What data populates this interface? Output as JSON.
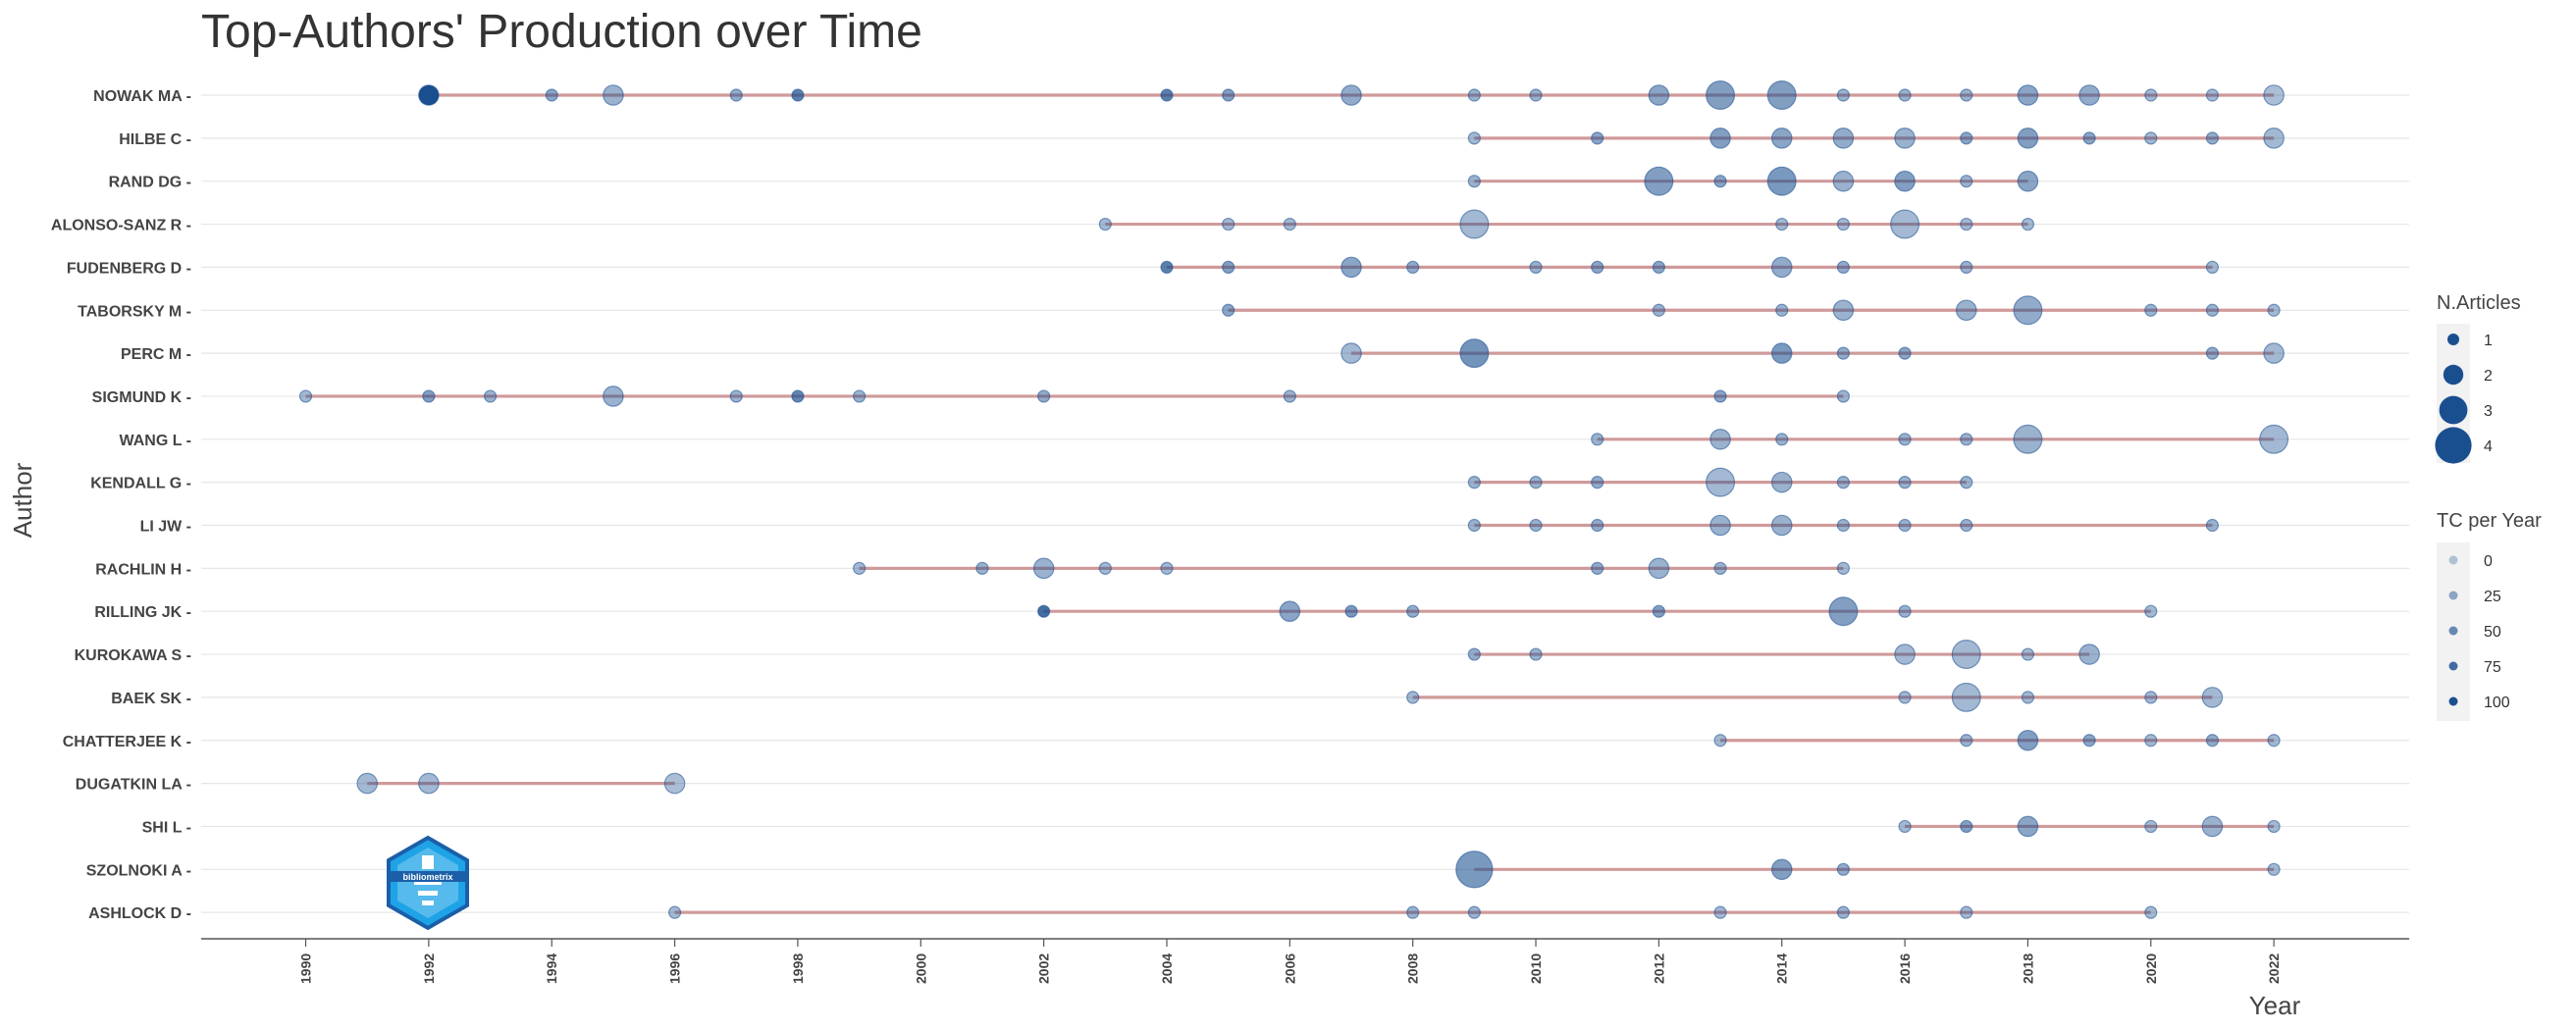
{
  "chart_data": {
    "type": "scatter",
    "title": "Top-Authors' Production over Time",
    "xlabel": "Year",
    "ylabel": "Author",
    "xlim": [
      1988.3,
      2024.2
    ],
    "x_ticks": [
      1990,
      1992,
      1994,
      1996,
      1998,
      2000,
      2002,
      2004,
      2006,
      2008,
      2010,
      2012,
      2014,
      2016,
      2018,
      2020,
      2022
    ],
    "grid": "horizontal",
    "colors": {
      "point": "#1a4f8f",
      "line": "#c98b8b",
      "grid": "#e6e6e6",
      "axis": "#555555"
    },
    "legend_articles": {
      "title": "N.Articles",
      "placement": "right",
      "values": [
        1,
        2,
        3,
        4
      ]
    },
    "legend_tc": {
      "title": "TC per Year",
      "placement": "right",
      "labels": [
        "0",
        "25",
        "50",
        "75",
        "100"
      ]
    },
    "authors": [
      {
        "name": "NOWAK MA",
        "points": [
          [
            1992,
            2,
            100
          ],
          [
            1994,
            1,
            30
          ],
          [
            1995,
            2,
            20
          ],
          [
            1997,
            1,
            25
          ],
          [
            1998,
            1,
            60
          ],
          [
            2004,
            1,
            60
          ],
          [
            2005,
            1,
            35
          ],
          [
            2007,
            2,
            25
          ],
          [
            2009,
            1,
            20
          ],
          [
            2010,
            1,
            20
          ],
          [
            2012,
            2,
            30
          ],
          [
            2013,
            3,
            35
          ],
          [
            2014,
            3,
            35
          ],
          [
            2015,
            1,
            20
          ],
          [
            2016,
            1,
            20
          ],
          [
            2017,
            1,
            20
          ],
          [
            2018,
            2,
            30
          ],
          [
            2019,
            2,
            25
          ],
          [
            2020,
            1,
            15
          ],
          [
            2021,
            1,
            15
          ],
          [
            2022,
            2,
            10
          ]
        ]
      },
      {
        "name": "HILBE C",
        "points": [
          [
            2009,
            1,
            15
          ],
          [
            2011,
            1,
            30
          ],
          [
            2013,
            2,
            35
          ],
          [
            2014,
            2,
            30
          ],
          [
            2015,
            2,
            25
          ],
          [
            2016,
            2,
            20
          ],
          [
            2017,
            1,
            30
          ],
          [
            2018,
            2,
            35
          ],
          [
            2019,
            1,
            30
          ],
          [
            2020,
            1,
            15
          ],
          [
            2021,
            1,
            25
          ],
          [
            2022,
            2,
            15
          ]
        ]
      },
      {
        "name": "RAND DG",
        "points": [
          [
            2009,
            1,
            20
          ],
          [
            2012,
            3,
            35
          ],
          [
            2013,
            1,
            30
          ],
          [
            2014,
            3,
            40
          ],
          [
            2015,
            2,
            20
          ],
          [
            2016,
            2,
            35
          ],
          [
            2017,
            1,
            20
          ],
          [
            2018,
            2,
            30
          ]
        ]
      },
      {
        "name": "ALONSO-SANZ R",
        "points": [
          [
            2003,
            1,
            15
          ],
          [
            2005,
            1,
            15
          ],
          [
            2006,
            1,
            15
          ],
          [
            2009,
            3,
            15
          ],
          [
            2014,
            1,
            15
          ],
          [
            2015,
            1,
            15
          ],
          [
            2016,
            3,
            15
          ],
          [
            2017,
            1,
            15
          ],
          [
            2018,
            1,
            15
          ]
        ]
      },
      {
        "name": "FUDENBERG D",
        "points": [
          [
            2004,
            1,
            60
          ],
          [
            2005,
            1,
            35
          ],
          [
            2007,
            2,
            30
          ],
          [
            2008,
            1,
            25
          ],
          [
            2010,
            1,
            20
          ],
          [
            2011,
            1,
            30
          ],
          [
            2012,
            1,
            30
          ],
          [
            2014,
            2,
            25
          ],
          [
            2015,
            1,
            25
          ],
          [
            2017,
            1,
            20
          ],
          [
            2021,
            1,
            15
          ]
        ]
      },
      {
        "name": "TABORSKY M",
        "points": [
          [
            2005,
            1,
            30
          ],
          [
            2012,
            1,
            20
          ],
          [
            2014,
            1,
            20
          ],
          [
            2015,
            2,
            20
          ],
          [
            2017,
            2,
            20
          ],
          [
            2018,
            3,
            25
          ],
          [
            2020,
            1,
            20
          ],
          [
            2021,
            1,
            20
          ],
          [
            2022,
            1,
            15
          ]
        ]
      },
      {
        "name": "PERC M",
        "points": [
          [
            2007,
            2,
            15
          ],
          [
            2009,
            3,
            45
          ],
          [
            2014,
            2,
            40
          ],
          [
            2015,
            1,
            25
          ],
          [
            2016,
            1,
            30
          ],
          [
            2021,
            1,
            25
          ],
          [
            2022,
            2,
            15
          ]
        ]
      },
      {
        "name": "SIGMUND K",
        "points": [
          [
            1990,
            1,
            15
          ],
          [
            1992,
            1,
            35
          ],
          [
            1993,
            1,
            20
          ],
          [
            1995,
            2,
            20
          ],
          [
            1997,
            1,
            20
          ],
          [
            1998,
            1,
            55
          ],
          [
            1999,
            1,
            20
          ],
          [
            2002,
            1,
            25
          ],
          [
            2006,
            1,
            20
          ],
          [
            2013,
            1,
            30
          ],
          [
            2015,
            1,
            20
          ]
        ]
      },
      {
        "name": "WANG L",
        "points": [
          [
            2011,
            1,
            20
          ],
          [
            2013,
            2,
            20
          ],
          [
            2014,
            1,
            20
          ],
          [
            2016,
            1,
            20
          ],
          [
            2017,
            1,
            20
          ],
          [
            2018,
            3,
            20
          ],
          [
            2022,
            3,
            15
          ]
        ]
      },
      {
        "name": "KENDALL G",
        "points": [
          [
            2009,
            1,
            20
          ],
          [
            2010,
            1,
            20
          ],
          [
            2011,
            1,
            25
          ],
          [
            2013,
            3,
            15
          ],
          [
            2014,
            2,
            20
          ],
          [
            2015,
            1,
            20
          ],
          [
            2016,
            1,
            20
          ],
          [
            2017,
            1,
            20
          ]
        ]
      },
      {
        "name": "LI JW",
        "points": [
          [
            2009,
            1,
            20
          ],
          [
            2010,
            1,
            20
          ],
          [
            2011,
            1,
            25
          ],
          [
            2013,
            2,
            20
          ],
          [
            2014,
            2,
            20
          ],
          [
            2015,
            1,
            20
          ],
          [
            2016,
            1,
            20
          ],
          [
            2017,
            1,
            20
          ],
          [
            2021,
            1,
            20
          ]
        ]
      },
      {
        "name": "RACHLIN H",
        "points": [
          [
            1999,
            1,
            15
          ],
          [
            2001,
            1,
            20
          ],
          [
            2002,
            2,
            20
          ],
          [
            2003,
            1,
            15
          ],
          [
            2004,
            1,
            15
          ],
          [
            2011,
            1,
            25
          ],
          [
            2012,
            2,
            20
          ],
          [
            2013,
            1,
            20
          ],
          [
            2015,
            1,
            15
          ]
        ]
      },
      {
        "name": "RILLING JK",
        "points": [
          [
            2002,
            1,
            75
          ],
          [
            2006,
            2,
            30
          ],
          [
            2007,
            1,
            40
          ],
          [
            2008,
            1,
            25
          ],
          [
            2012,
            1,
            35
          ],
          [
            2015,
            3,
            35
          ],
          [
            2016,
            1,
            20
          ],
          [
            2020,
            1,
            15
          ]
        ]
      },
      {
        "name": "KUROKAWA S",
        "points": [
          [
            2009,
            1,
            25
          ],
          [
            2010,
            1,
            20
          ],
          [
            2016,
            2,
            15
          ],
          [
            2017,
            3,
            15
          ],
          [
            2018,
            1,
            15
          ],
          [
            2019,
            2,
            20
          ]
        ]
      },
      {
        "name": "BAEK SK",
        "points": [
          [
            2008,
            1,
            15
          ],
          [
            2016,
            1,
            15
          ],
          [
            2017,
            3,
            15
          ],
          [
            2018,
            1,
            15
          ],
          [
            2020,
            1,
            15
          ],
          [
            2021,
            2,
            15
          ]
        ]
      },
      {
        "name": "CHATTERJEE K",
        "points": [
          [
            2013,
            1,
            15
          ],
          [
            2017,
            1,
            20
          ],
          [
            2018,
            2,
            35
          ],
          [
            2019,
            1,
            30
          ],
          [
            2020,
            1,
            15
          ],
          [
            2021,
            1,
            25
          ],
          [
            2022,
            1,
            15
          ]
        ]
      },
      {
        "name": "DUGATKIN LA",
        "points": [
          [
            1991,
            2,
            15
          ],
          [
            1992,
            2,
            15
          ],
          [
            1996,
            2,
            10
          ]
        ]
      },
      {
        "name": "SHI L",
        "points": [
          [
            2016,
            1,
            15
          ],
          [
            2017,
            1,
            35
          ],
          [
            2018,
            2,
            30
          ],
          [
            2020,
            1,
            15
          ],
          [
            2021,
            2,
            20
          ],
          [
            2022,
            1,
            15
          ]
        ]
      },
      {
        "name": "SZOLNOKI A",
        "points": [
          [
            2009,
            4,
            40
          ],
          [
            2014,
            2,
            35
          ],
          [
            2015,
            1,
            25
          ],
          [
            2022,
            1,
            15
          ]
        ]
      },
      {
        "name": "ASHLOCK D",
        "points": [
          [
            1996,
            1,
            15
          ],
          [
            2008,
            1,
            20
          ],
          [
            2009,
            1,
            20
          ],
          [
            2013,
            1,
            15
          ],
          [
            2015,
            1,
            20
          ],
          [
            2017,
            1,
            15
          ],
          [
            2020,
            1,
            15
          ]
        ]
      }
    ]
  },
  "logo": {
    "text": "bibliometrix"
  }
}
